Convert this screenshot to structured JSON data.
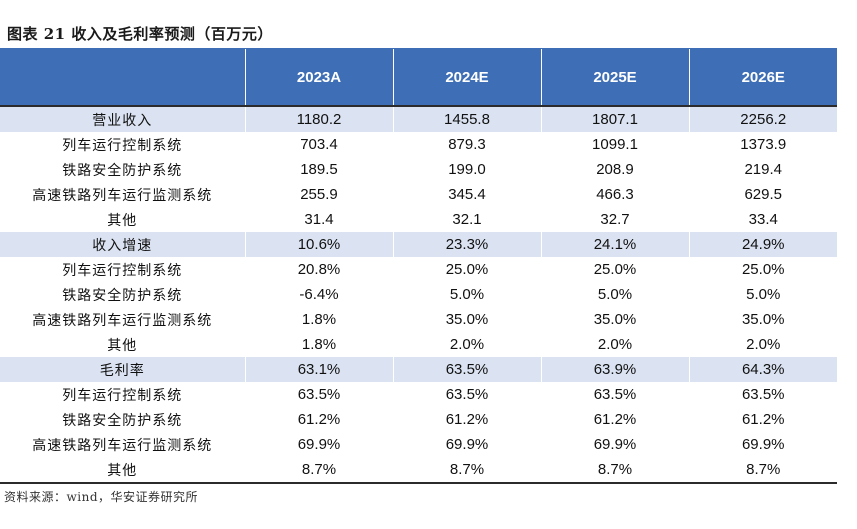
{
  "title": "图表 21  收入及毛利率预测（百万元）",
  "table": {
    "headers": [
      "",
      "2023A",
      "2024E",
      "2025E",
      "2026E"
    ],
    "rows": [
      {
        "label": "营业收入",
        "group": true,
        "values": [
          "1180.2",
          "1455.8",
          "1807.1",
          "2256.2"
        ]
      },
      {
        "label": "列车运行控制系统",
        "group": false,
        "values": [
          "703.4",
          "879.3",
          "1099.1",
          "1373.9"
        ]
      },
      {
        "label": "铁路安全防护系统",
        "group": false,
        "values": [
          "189.5",
          "199.0",
          "208.9",
          "219.4"
        ]
      },
      {
        "label": "高速铁路列车运行监测系统",
        "group": false,
        "values": [
          "255.9",
          "345.4",
          "466.3",
          "629.5"
        ]
      },
      {
        "label": "其他",
        "group": false,
        "values": [
          "31.4",
          "32.1",
          "32.7",
          "33.4"
        ]
      },
      {
        "label": "收入增速",
        "group": true,
        "values": [
          "10.6%",
          "23.3%",
          "24.1%",
          "24.9%"
        ]
      },
      {
        "label": "列车运行控制系统",
        "group": false,
        "values": [
          "20.8%",
          "25.0%",
          "25.0%",
          "25.0%"
        ]
      },
      {
        "label": "铁路安全防护系统",
        "group": false,
        "values": [
          "-6.4%",
          "5.0%",
          "5.0%",
          "5.0%"
        ]
      },
      {
        "label": "高速铁路列车运行监测系统",
        "group": false,
        "values": [
          "1.8%",
          "35.0%",
          "35.0%",
          "35.0%"
        ]
      },
      {
        "label": "其他",
        "group": false,
        "values": [
          "1.8%",
          "2.0%",
          "2.0%",
          "2.0%"
        ]
      },
      {
        "label": "毛利率",
        "group": true,
        "values": [
          "63.1%",
          "63.5%",
          "63.9%",
          "64.3%"
        ]
      },
      {
        "label": "列车运行控制系统",
        "group": false,
        "values": [
          "63.5%",
          "63.5%",
          "63.5%",
          "63.5%"
        ]
      },
      {
        "label": "铁路安全防护系统",
        "group": false,
        "values": [
          "61.2%",
          "61.2%",
          "61.2%",
          "61.2%"
        ]
      },
      {
        "label": "高速铁路列车运行监测系统",
        "group": false,
        "values": [
          "69.9%",
          "69.9%",
          "69.9%",
          "69.9%"
        ]
      },
      {
        "label": "其他",
        "group": false,
        "values": [
          "8.7%",
          "8.7%",
          "8.7%",
          "8.7%"
        ]
      }
    ]
  },
  "source": "资料来源：wind，华安证券研究所",
  "colors": {
    "header_bg": "#3e6fb6",
    "group_bg": "#dbe3f2",
    "rule": "#2b2b2b"
  }
}
